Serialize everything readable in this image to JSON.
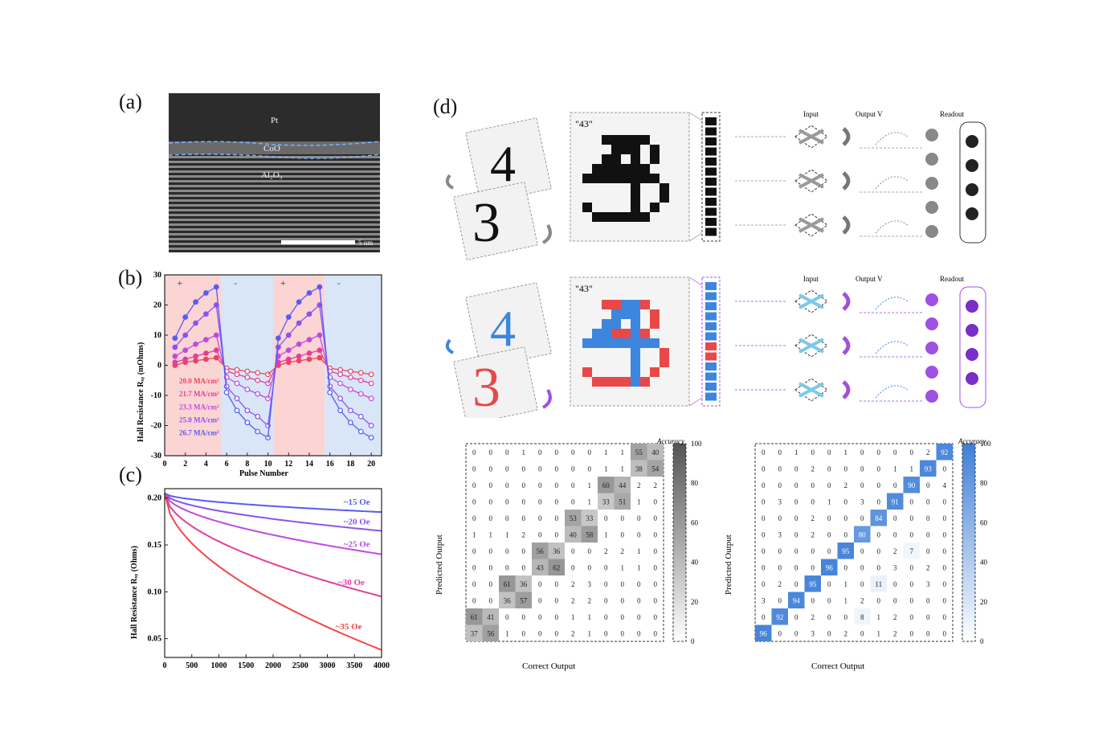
{
  "labels": {
    "a": "(a)",
    "b": "(b)",
    "c": "(c)",
    "d": "(d)"
  },
  "tem": {
    "pt": "Pt",
    "coo": "CoO",
    "al2o3": "Al₂O₃",
    "scale": "5 nm"
  },
  "chart_b": {
    "type": "line",
    "ylabel": "Hall Resistance Rₓᵧ (mOhms)",
    "xlabel": "Pulse Number",
    "xlim": [
      0,
      21
    ],
    "ylim": [
      -30,
      30
    ],
    "xticks": [
      "0",
      "2",
      "4",
      "6",
      "8",
      "10",
      "12",
      "14",
      "16",
      "18",
      "20"
    ],
    "yticks": [
      "30",
      "20",
      "10",
      "0",
      "-10",
      "-20",
      "-30"
    ],
    "signs": [
      "+",
      "-",
      "+",
      "-"
    ],
    "legend": [
      "20.0 MA/cm²",
      "21.7 MA/cm²",
      "23.3 MA/cm²",
      "25.0 MA/cm²",
      "26.7 MA/cm²"
    ],
    "colors": [
      "#e8455f",
      "#e0409a",
      "#c04ae0",
      "#8a52f0",
      "#5a5af5"
    ],
    "series": [
      {
        "name": "20.0 MA/cm²",
        "values": [
          0,
          1,
          1.5,
          2,
          2.5,
          -1,
          -1.5,
          -2,
          -2.5,
          -3,
          0,
          1,
          1.5,
          2,
          2.5,
          -1,
          -1.5,
          -2,
          -2.5,
          -3
        ]
      },
      {
        "name": "21.7 MA/cm²",
        "values": [
          1,
          2,
          3,
          4,
          5,
          -2,
          -3,
          -4,
          -5,
          -6,
          1,
          2,
          3,
          4,
          5,
          -2,
          -3,
          -4,
          -5,
          -6
        ]
      },
      {
        "name": "23.3 MA/cm²",
        "values": [
          3,
          5,
          7,
          8.5,
          10,
          -4,
          -6,
          -8,
          -9.5,
          -11,
          3,
          5,
          7,
          8.5,
          10,
          -4,
          -6,
          -8,
          -9.5,
          -11
        ]
      },
      {
        "name": "25.0 MA/cm²",
        "values": [
          6,
          10,
          14,
          17,
          20,
          -7,
          -11,
          -15,
          -17,
          -20,
          6,
          10,
          14,
          17,
          20,
          -7,
          -11,
          -15,
          -17,
          -20
        ]
      },
      {
        "name": "26.7 MA/cm²",
        "values": [
          9,
          16,
          21,
          24,
          26,
          -9,
          -15,
          -19,
          -22,
          -24,
          9,
          16,
          21,
          24,
          26,
          -9,
          -15,
          -19,
          -22,
          -24
        ]
      }
    ]
  },
  "chart_c": {
    "type": "line",
    "ylabel": "Hall Resistance Rₓᵧ (Ohms)",
    "xlim": [
      0,
      4000
    ],
    "ylim": [
      0.03,
      0.21
    ],
    "xticks": [
      "0",
      "500",
      "1000",
      "1500",
      "2000",
      "2500",
      "3000",
      "3500",
      "4000"
    ],
    "yticks": [
      "0.20",
      "0.15",
      "0.10",
      "0.05"
    ],
    "series": [
      {
        "name": "~15 Oe",
        "start": 0.205,
        "end": 0.185,
        "color": "#5a5af5"
      },
      {
        "name": "~20 Oe",
        "start": 0.205,
        "end": 0.165,
        "color": "#8a52f0"
      },
      {
        "name": "~25 Oe",
        "start": 0.205,
        "end": 0.14,
        "color": "#c04ae0"
      },
      {
        "name": "~30 Oe",
        "start": 0.205,
        "end": 0.095,
        "color": "#e0409a"
      },
      {
        "name": "~35 Oe",
        "start": 0.205,
        "end": 0.038,
        "color": "#f04848"
      }
    ]
  },
  "diagram_d": {
    "word_label": "\"43\"",
    "col_headers": [
      "Input",
      "Output V",
      "Readout"
    ],
    "digit1": "4",
    "digit2": "3"
  },
  "matrix_left": {
    "ylabel": "Predicted Output",
    "xlabel": "Correct Output",
    "cbar_label": "Accuracy",
    "cbar_ticks": [
      "100",
      "80",
      "60",
      "40",
      "20",
      "0"
    ],
    "color": "#555555",
    "rows": [
      [
        0,
        0,
        0,
        1,
        0,
        0,
        0,
        0,
        1,
        1,
        55,
        40
      ],
      [
        0,
        0,
        0,
        0,
        0,
        0,
        0,
        0,
        1,
        1,
        38,
        54
      ],
      [
        0,
        0,
        0,
        0,
        0,
        0,
        0,
        1,
        60,
        44,
        2,
        2
      ],
      [
        0,
        0,
        0,
        0,
        0,
        0,
        0,
        1,
        33,
        51,
        1,
        0
      ],
      [
        0,
        0,
        0,
        0,
        0,
        0,
        53,
        33,
        0,
        0,
        0,
        0
      ],
      [
        1,
        1,
        1,
        2,
        0,
        0,
        40,
        58,
        1,
        0,
        0,
        0
      ],
      [
        0,
        0,
        0,
        0,
        56,
        36,
        0,
        0,
        2,
        2,
        1,
        0
      ],
      [
        0,
        0,
        0,
        0,
        43,
        62,
        0,
        0,
        0,
        1,
        1,
        0
      ],
      [
        0,
        0,
        61,
        36,
        0,
        0,
        2,
        3,
        0,
        0,
        0,
        0
      ],
      [
        0,
        0,
        36,
        57,
        0,
        0,
        2,
        2,
        0,
        0,
        0,
        0
      ],
      [
        61,
        41,
        0,
        0,
        0,
        0,
        1,
        1,
        0,
        0,
        0,
        0
      ],
      [
        37,
        56,
        1,
        0,
        0,
        0,
        2,
        1,
        0,
        0,
        0,
        0
      ]
    ]
  },
  "matrix_right": {
    "ylabel": "Predicted Output",
    "xlabel": "Correct Output",
    "cbar_label": "Accuracy",
    "cbar_ticks": [
      "100",
      "80",
      "60",
      "40",
      "20",
      "0"
    ],
    "color": "#3f7fd8",
    "rows": [
      [
        0,
        0,
        1,
        0,
        0,
        1,
        0,
        0,
        0,
        0,
        2,
        92
      ],
      [
        0,
        0,
        0,
        2,
        0,
        0,
        0,
        0,
        1,
        1,
        93,
        0
      ],
      [
        0,
        0,
        0,
        0,
        0,
        2,
        0,
        0,
        0,
        90,
        0,
        4
      ],
      [
        0,
        3,
        0,
        0,
        1,
        0,
        3,
        0,
        91,
        0,
        0,
        0
      ],
      [
        0,
        0,
        0,
        2,
        0,
        0,
        0,
        84,
        0,
        0,
        0,
        0
      ],
      [
        0,
        3,
        0,
        2,
        0,
        0,
        80,
        0,
        0,
        0,
        0,
        0
      ],
      [
        0,
        0,
        0,
        0,
        0,
        95,
        0,
        0,
        2,
        7,
        0,
        0
      ],
      [
        0,
        0,
        0,
        0,
        96,
        0,
        0,
        0,
        3,
        0,
        2,
        0
      ],
      [
        0,
        2,
        0,
        95,
        0,
        1,
        0,
        11,
        0,
        0,
        3,
        0
      ],
      [
        3,
        0,
        94,
        0,
        0,
        1,
        2,
        0,
        0,
        0,
        0,
        0
      ],
      [
        0,
        92,
        0,
        2,
        0,
        0,
        8,
        1,
        2,
        0,
        0,
        0
      ],
      [
        96,
        0,
        0,
        3,
        0,
        2,
        0,
        1,
        2,
        0,
        0,
        0
      ]
    ]
  }
}
